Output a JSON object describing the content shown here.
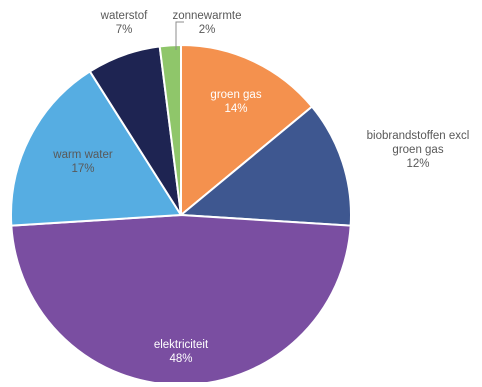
{
  "chart_data": {
    "type": "pie",
    "title": "",
    "slices": [
      {
        "label": "groen gas",
        "value": 14,
        "value_label": "14%",
        "color": "#F4914E"
      },
      {
        "label": "biobrandstoffen excl groen gas",
        "label_lines": [
          "biobrandstoffen excl",
          "groen gas"
        ],
        "value": 12,
        "value_label": "12%",
        "color": "#3E5790"
      },
      {
        "label": "elektriciteit",
        "value": 48,
        "value_label": "48%",
        "color": "#7A4EA1"
      },
      {
        "label": "warm water",
        "value": 17,
        "value_label": "17%",
        "color": "#56ADE2"
      },
      {
        "label": "waterstof",
        "value": 7,
        "value_label": "7%",
        "color": "#1E2452"
      },
      {
        "label": "zonnewarmte",
        "value": 2,
        "value_label": "2%",
        "color": "#8FC66A"
      }
    ],
    "start_angle_deg": 0,
    "direction": "clockwise",
    "legend": "none"
  }
}
